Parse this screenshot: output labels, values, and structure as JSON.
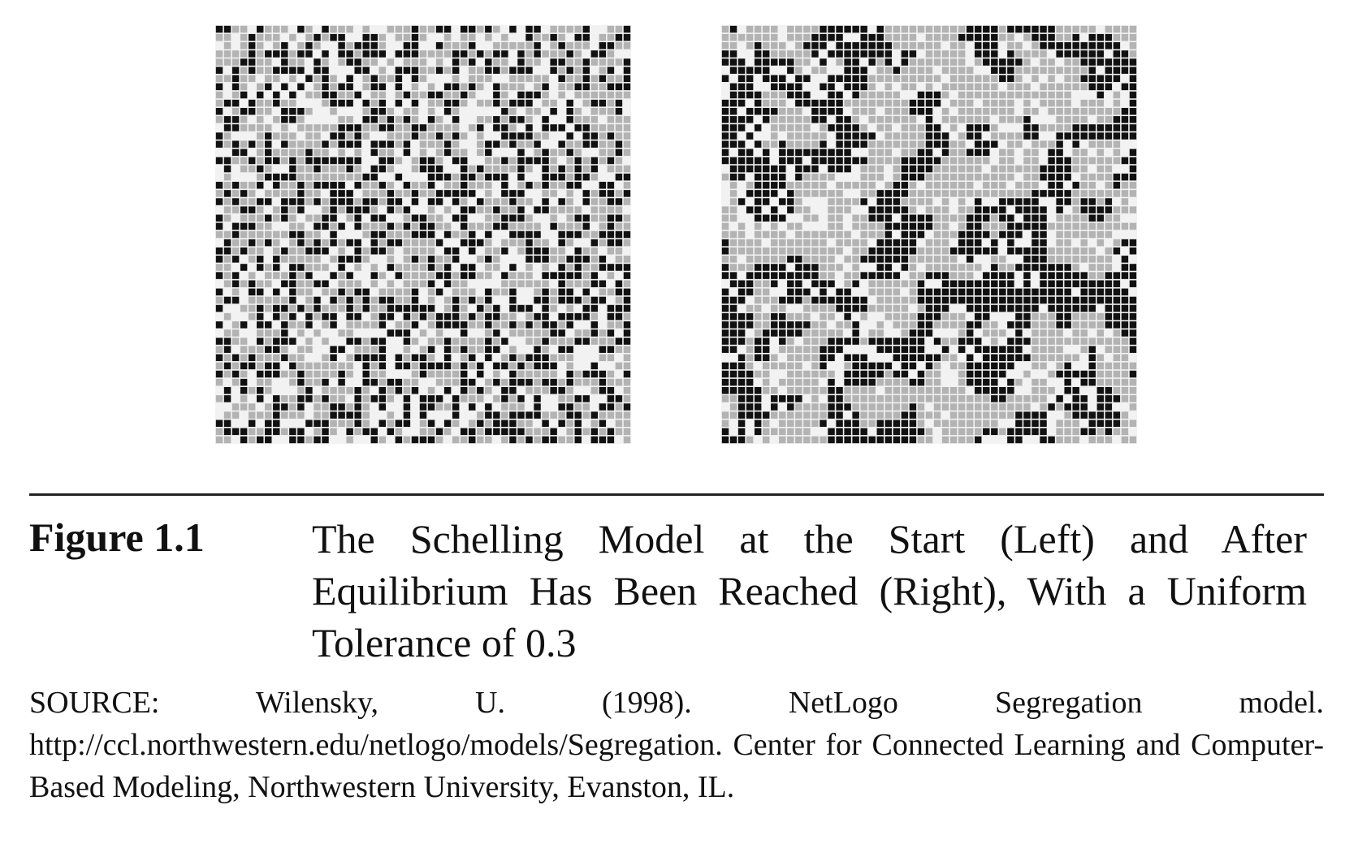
{
  "figure": {
    "label": "Figure 1.1",
    "caption": "The Schelling Model at the Start (Left) and After Equilibrium Has Been Reached (Right), With a Uniform Tolerance of 0.3",
    "source": "SOURCE: Wilensky, U. (1998). NetLogo Segregation model. http://ccl.northwestern.edu/netlogo/models/Segregation. Center for Connected Learning and Computer-Based Modeling, Northwestern University, Evanston, IL."
  },
  "colors": {
    "background": "#f2f2f2",
    "agent_dark": "#111111",
    "agent_light": "#b3b3b3"
  }
}
